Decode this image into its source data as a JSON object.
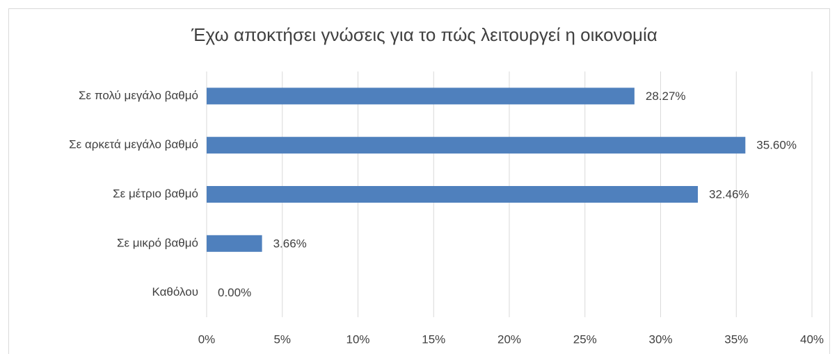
{
  "chart_data": {
    "type": "hbar",
    "title": "Έχω αποκτήσει γνώσεις για το πώς λειτουργεί η οικονομία",
    "categories": [
      "Σε πολύ μεγάλο βαθμό",
      "Σε αρκετά μεγάλο βαθμό",
      "Σε μέτριο βαθμό",
      "Σε μικρό βαθμό",
      "Καθόλου"
    ],
    "values": [
      28.27,
      35.6,
      32.46,
      3.66,
      0
    ],
    "value_labels": [
      "28.27%",
      "35.60%",
      "32.46%",
      "3.66%",
      "0.00%"
    ],
    "color": "#4f80bd",
    "xlim": [
      0,
      40
    ],
    "xticks": [
      {
        "value": 0,
        "label": "0%"
      },
      {
        "value": 5,
        "label": "5%"
      },
      {
        "value": 10,
        "label": "10%"
      },
      {
        "value": 15,
        "label": "15%"
      },
      {
        "value": 20,
        "label": "20%"
      },
      {
        "value": 25,
        "label": "25%"
      },
      {
        "value": 30,
        "label": "30%"
      },
      {
        "value": 35,
        "label": "35%"
      },
      {
        "value": 40,
        "label": "40%"
      }
    ],
    "grid": true
  }
}
